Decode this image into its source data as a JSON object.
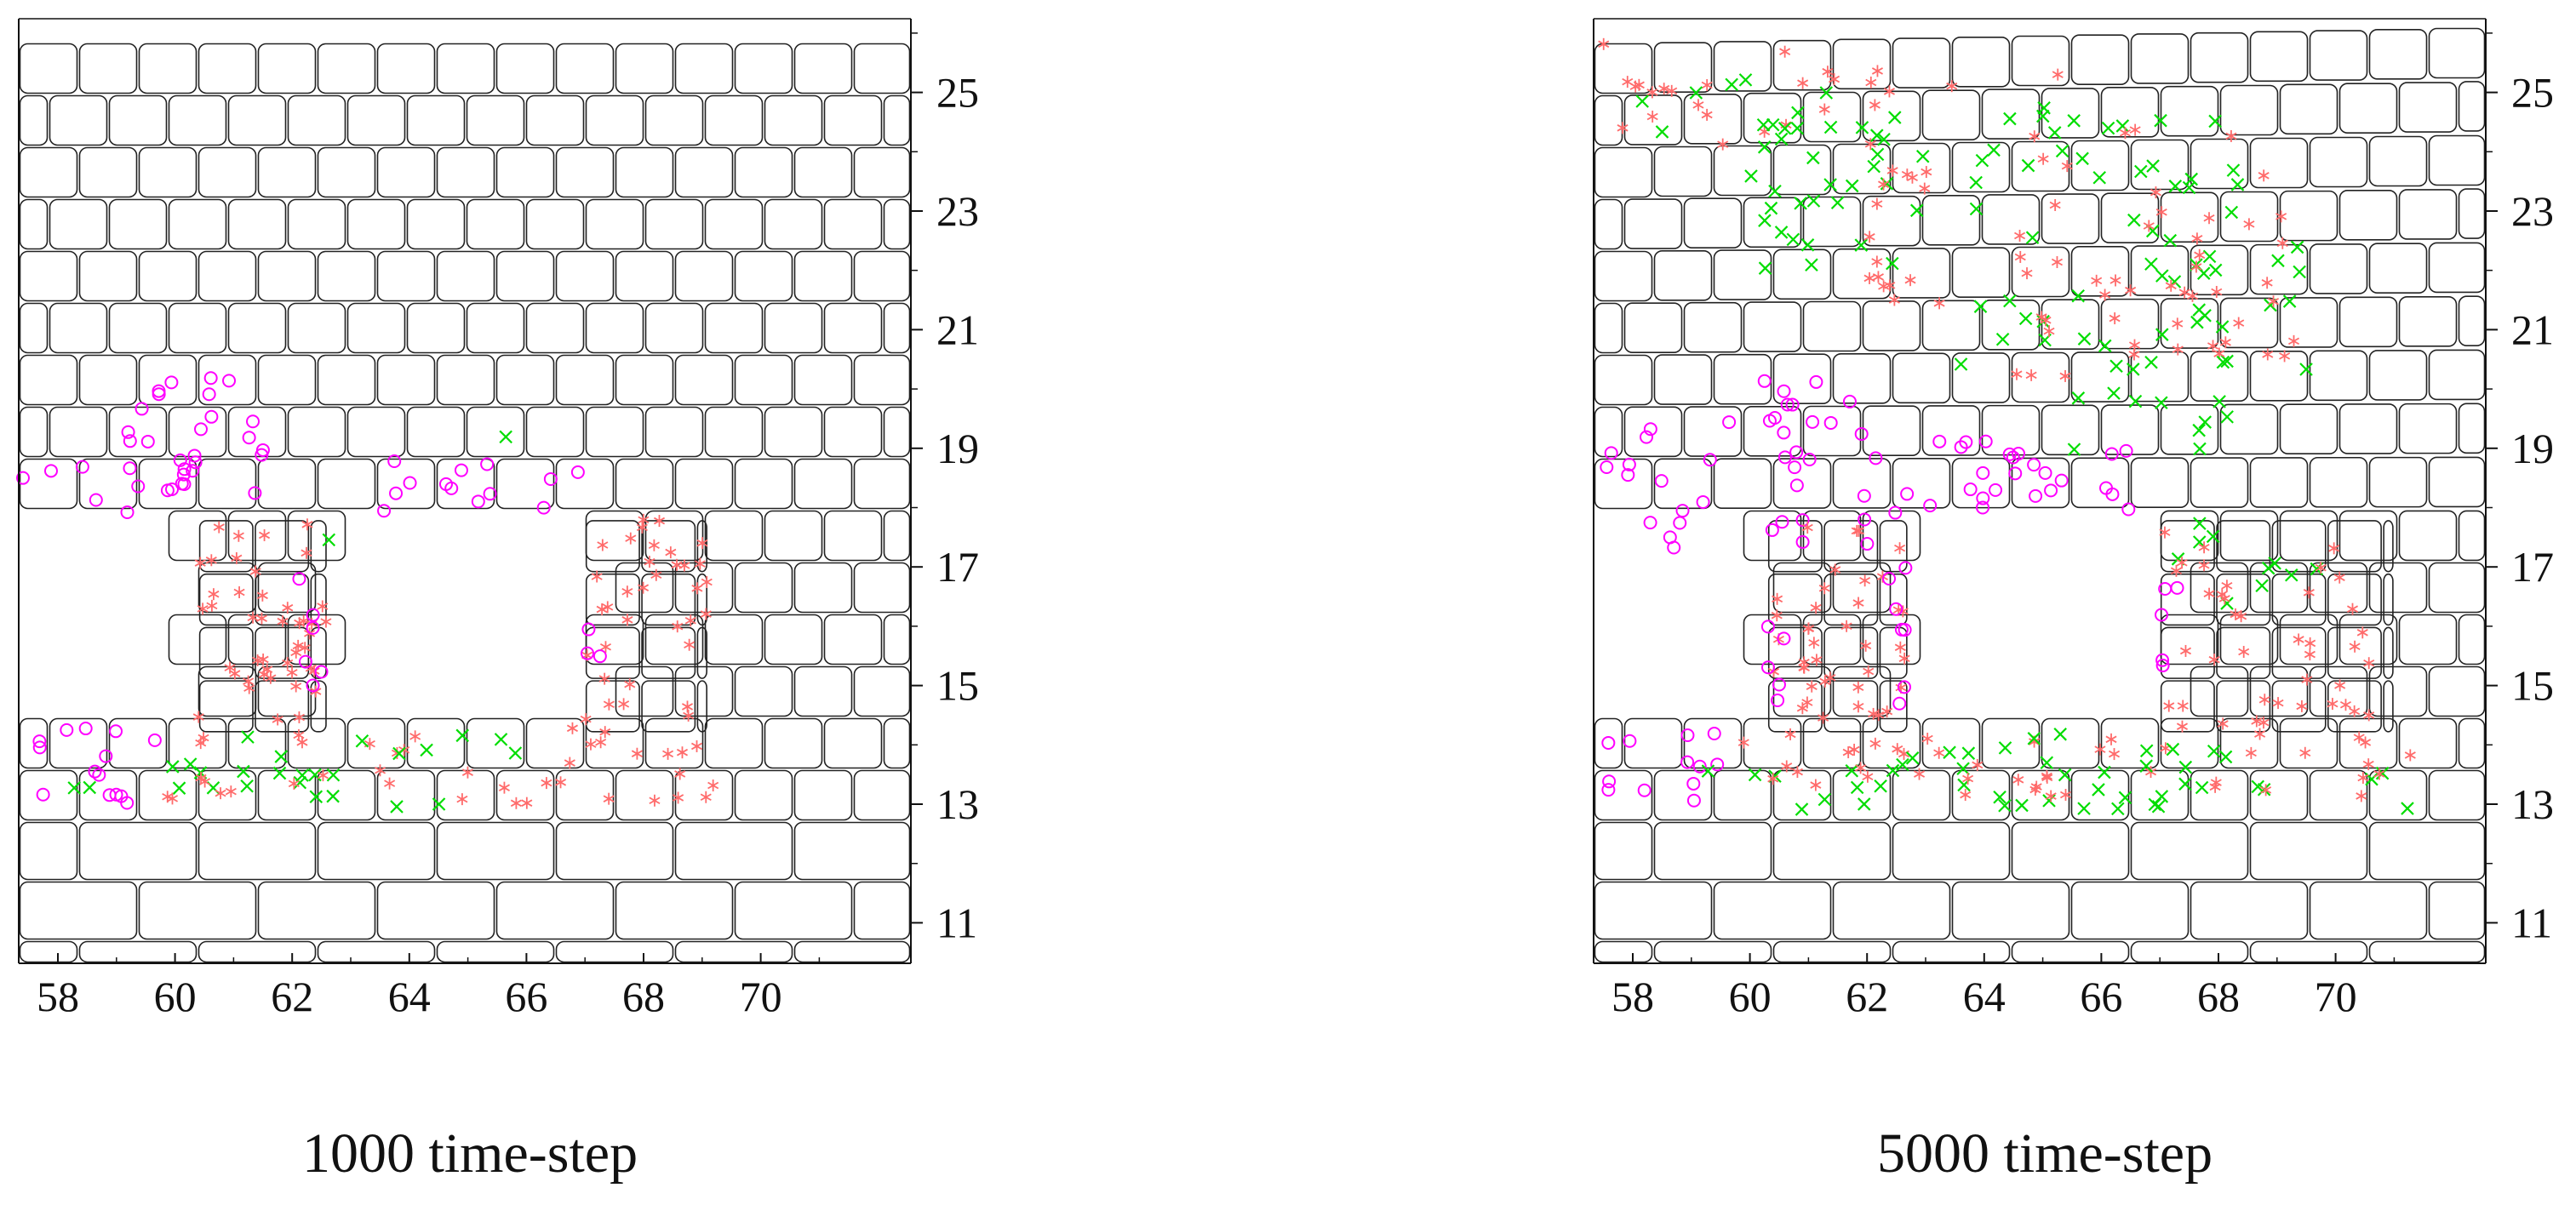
{
  "axes": {
    "x_ticks": [
      "58",
      "60",
      "62",
      "64",
      "66",
      "68",
      "70"
    ],
    "y_ticks": [
      "25",
      "23",
      "21",
      "19",
      "17",
      "15",
      "13",
      "11"
    ]
  },
  "panels": [
    {
      "id": "left",
      "caption": "1000 time-step"
    },
    {
      "id": "right",
      "caption": "5000 time-step"
    }
  ],
  "legend_markers": {
    "circle": {
      "shape": "circle",
      "color": "#ff00ff"
    },
    "asterisk": {
      "shape": "asterisk",
      "color": "#ff6b6b"
    },
    "cross": {
      "shape": "x",
      "color": "#00dd00"
    }
  },
  "colors": {
    "block_stroke": "#222222",
    "axis": "#111111"
  }
}
